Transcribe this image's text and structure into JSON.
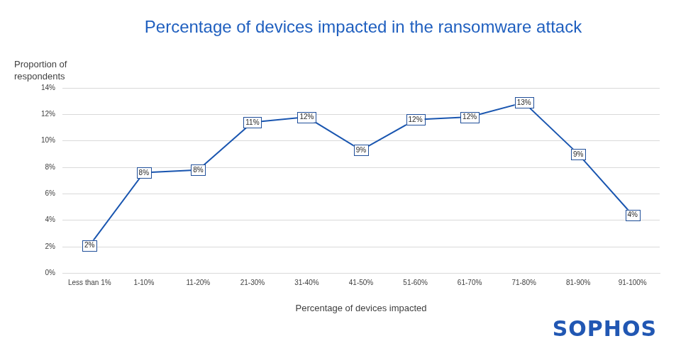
{
  "chart_data": {
    "type": "line",
    "title": "Percentage of devices impacted in the ransomware attack",
    "y_label": "Proportion of respondents",
    "x_label": "Percentage of devices impacted",
    "categories": [
      "Less than 1%",
      "1-10%",
      "11-20%",
      "21-30%",
      "31-40%",
      "41-50%",
      "51-60%",
      "61-70%",
      "71-80%",
      "81-90%",
      "91-100%"
    ],
    "values": [
      2.1,
      7.6,
      7.8,
      11.4,
      11.8,
      9.3,
      11.6,
      11.8,
      12.9,
      9.0,
      4.4
    ],
    "value_labels": [
      "2%",
      "8%",
      "8%",
      "11%",
      "12%",
      "9%",
      "12%",
      "12%",
      "13%",
      "9%",
      "4%"
    ],
    "data_labels": true,
    "color": "#1a56b0",
    "ylim": [
      0,
      14
    ],
    "yticks": [
      {
        "value": 0,
        "label": "0%"
      },
      {
        "value": 2,
        "label": "2%"
      },
      {
        "value": 4,
        "label": "4%"
      },
      {
        "value": 6,
        "label": "6%"
      },
      {
        "value": 8,
        "label": "8%"
      },
      {
        "value": 10,
        "label": "10%"
      },
      {
        "value": 12,
        "label": "12%"
      },
      {
        "value": 14,
        "label": "14%"
      }
    ],
    "grid": true,
    "logo": "SOPHOS"
  }
}
